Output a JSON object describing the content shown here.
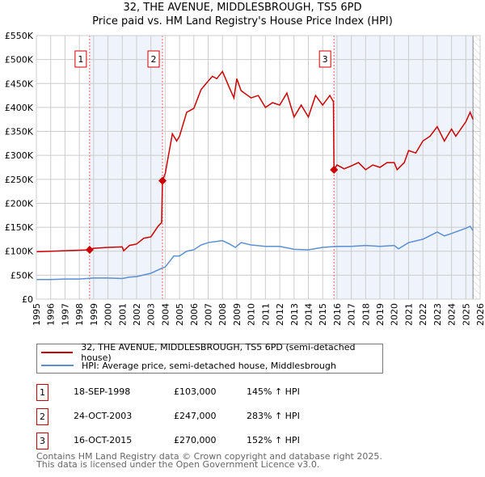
{
  "title": "32, THE AVENUE, MIDDLESBROUGH, TS5 6PD",
  "subtitle": "Price paid vs. HM Land Registry's House Price Index (HPI)",
  "chart_data": {
    "type": "line",
    "title": "32, THE AVENUE, MIDDLESBROUGH, TS5 6PD",
    "subtitle": "Price paid vs. HM Land Registry's House Price Index (HPI)",
    "xlim": [
      1995,
      2026
    ],
    "ylim": [
      0,
      550000
    ],
    "x_ticks": [
      "1995",
      "1996",
      "1997",
      "1998",
      "1999",
      "2000",
      "2001",
      "2002",
      "2003",
      "2004",
      "2005",
      "2006",
      "2007",
      "2008",
      "2009",
      "2010",
      "2011",
      "2012",
      "2013",
      "2014",
      "2015",
      "2016",
      "2017",
      "2018",
      "2019",
      "2020",
      "2021",
      "2022",
      "2023",
      "2024",
      "2025",
      "2026"
    ],
    "y_ticks": [
      {
        "v": 0,
        "label": "£0"
      },
      {
        "v": 50000,
        "label": "£50K"
      },
      {
        "v": 100000,
        "label": "£100K"
      },
      {
        "v": 150000,
        "label": "£150K"
      },
      {
        "v": 200000,
        "label": "£200K"
      },
      {
        "v": 250000,
        "label": "£250K"
      },
      {
        "v": 300000,
        "label": "£300K"
      },
      {
        "v": 350000,
        "label": "£350K"
      },
      {
        "v": 400000,
        "label": "£400K"
      },
      {
        "v": 450000,
        "label": "£450K"
      },
      {
        "v": 500000,
        "label": "£500K"
      },
      {
        "v": 550000,
        "label": "£550K"
      }
    ],
    "grid": true,
    "shaded_ranges": [
      [
        1998.72,
        2003.81
      ],
      [
        2015.79,
        2025.5
      ]
    ],
    "hatched_from": 2025.5,
    "colors": {
      "property": "#cc0000",
      "hpi": "#5b8fd4",
      "shade": "#eef3fc",
      "grid": "#cccccc"
    },
    "series": [
      {
        "name": "32, THE AVENUE, MIDDLESBROUGH, TS5 6PD (semi-detached house)",
        "color": "#cc0000",
        "x": [
          1995,
          1996,
          1997,
          1998,
          1998.72,
          1999,
          2000,
          2001,
          2001.1,
          2001.5,
          2002,
          2002.5,
          2003,
          2003.5,
          2003.75,
          2003.81,
          2004,
          2004.5,
          2004.8,
          2005,
          2005.5,
          2006,
          2006.5,
          2007,
          2007.3,
          2007.6,
          2008,
          2008.5,
          2008.8,
          2009,
          2009.3,
          2010,
          2010.5,
          2011,
          2011.5,
          2012,
          2012.5,
          2013,
          2013.5,
          2014,
          2014.5,
          2015,
          2015.5,
          2015.75,
          2015.79,
          2016,
          2016.5,
          2017,
          2017.5,
          2018,
          2018.5,
          2019,
          2019.5,
          2020,
          2020.2,
          2020.7,
          2021,
          2021.5,
          2022,
          2022.5,
          2023,
          2023.5,
          2024,
          2024.3,
          2025,
          2025.3,
          2025.5
        ],
        "y": [
          99000,
          100000,
          101000,
          102000,
          103000,
          106000,
          108000,
          109000,
          101000,
          112000,
          115000,
          127000,
          130000,
          152000,
          160000,
          247000,
          262000,
          345000,
          330000,
          340000,
          390000,
          398000,
          437000,
          455000,
          465000,
          460000,
          475000,
          440000,
          420000,
          460000,
          435000,
          420000,
          425000,
          400000,
          410000,
          405000,
          430000,
          380000,
          405000,
          380000,
          425000,
          405000,
          425000,
          412000,
          270000,
          280000,
          272000,
          278000,
          285000,
          270000,
          280000,
          275000,
          285000,
          285000,
          270000,
          285000,
          310000,
          305000,
          330000,
          340000,
          360000,
          330000,
          355000,
          340000,
          370000,
          390000,
          375000
        ]
      },
      {
        "name": "HPI: Average price, semi-detached house, Middlesbrough",
        "color": "#5b8fd4",
        "x": [
          1995,
          1996,
          1997,
          1998,
          1999,
          2000,
          2001,
          2001.5,
          2002,
          2003,
          2003.8,
          2004,
          2004.6,
          2005,
          2005.5,
          2006,
          2006.5,
          2007,
          2008,
          2008.5,
          2008.9,
          2009.3,
          2010,
          2011,
          2012,
          2013,
          2014,
          2015,
          2016,
          2017,
          2018,
          2019,
          2020,
          2020.3,
          2021,
          2022,
          2023,
          2023.5,
          2024,
          2025,
          2025.3,
          2025.5
        ],
        "y": [
          41000,
          41000,
          42000,
          42000,
          44000,
          44000,
          43000,
          46000,
          47000,
          54000,
          65000,
          67000,
          90000,
          90000,
          100000,
          103000,
          113000,
          118000,
          122000,
          115000,
          108000,
          118000,
          113000,
          110000,
          110000,
          104000,
          103000,
          108000,
          110000,
          110000,
          112000,
          110000,
          112000,
          105000,
          118000,
          125000,
          140000,
          132000,
          137000,
          148000,
          152000,
          143000
        ]
      }
    ],
    "markers": [
      {
        "id": "1",
        "x": 1998.72,
        "y": 103000
      },
      {
        "id": "2",
        "x": 2003.81,
        "y": 247000
      },
      {
        "id": "3",
        "x": 2015.79,
        "y": 270000
      }
    ]
  },
  "legend": [
    "32, THE AVENUE, MIDDLESBROUGH, TS5 6PD (semi-detached house)",
    "HPI: Average price, semi-detached house, Middlesbrough"
  ],
  "transactions": [
    {
      "id": "1",
      "date": "18-SEP-1998",
      "price": "£103,000",
      "hpi": "145% ↑ HPI"
    },
    {
      "id": "2",
      "date": "24-OCT-2003",
      "price": "£247,000",
      "hpi": "283% ↑ HPI"
    },
    {
      "id": "3",
      "date": "16-OCT-2015",
      "price": "£270,000",
      "hpi": "152% ↑ HPI"
    }
  ],
  "footer": [
    "Contains HM Land Registry data © Crown copyright and database right 2025.",
    "This data is licensed under the Open Government Licence v3.0."
  ]
}
